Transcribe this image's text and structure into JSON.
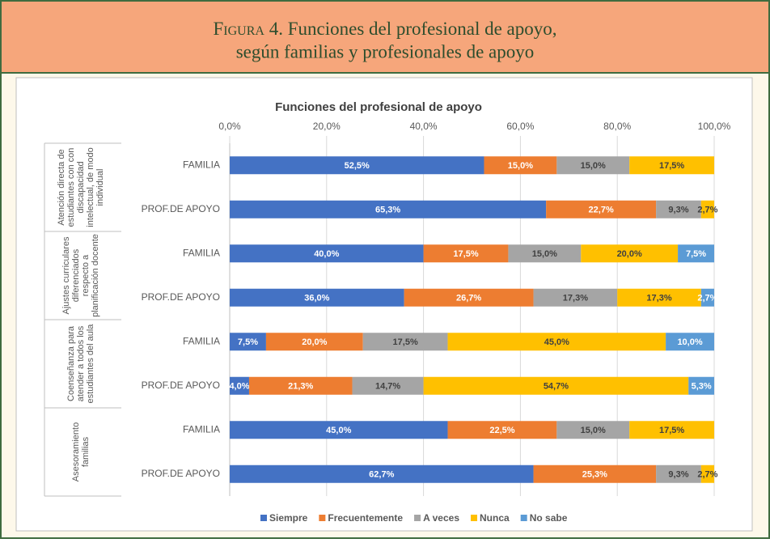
{
  "figure": {
    "caption_label": "Figura 4.",
    "caption_lines": [
      "Funciones del profesional de apoyo,",
      "según familias y profesionales de apoyo"
    ]
  },
  "chart_data": {
    "type": "stacked_barh",
    "title": "Funciones del profesional de apoyo",
    "categories": [
      "FAMILIA",
      "PROF.DE APOYO",
      "FAMILIA",
      "PROF.DE APOYO",
      "FAMILIA",
      "PROF.DE APOYO",
      "FAMILIA",
      "PROF.DE APOYO"
    ],
    "group_labels": [
      [
        "Atención directa de",
        "estudiantes con con",
        "discapacidad",
        "intelectual, de modo",
        "individual"
      ],
      [
        "Ajustes curriculares",
        "diferenciados",
        "respecto a",
        "planificación docente"
      ],
      [
        "Coenseñanza para",
        "atender a todos los",
        "estudiantes del aula"
      ],
      [
        "Asesoramiento",
        "familias"
      ]
    ],
    "xlim": [
      0,
      100
    ],
    "xticks": [
      {
        "value": 0,
        "label": "0,0%"
      },
      {
        "value": 20,
        "label": "20,0%"
      },
      {
        "value": 40,
        "label": "40,0%"
      },
      {
        "value": 60,
        "label": "60,0%"
      },
      {
        "value": 80,
        "label": "80,0%"
      },
      {
        "value": 100,
        "label": "100,0%"
      }
    ],
    "grid": true,
    "legend": "bottom",
    "series": [
      {
        "name": "Siempre",
        "color": "#4472c4",
        "values": [
          52.5,
          65.3,
          40.0,
          36.0,
          7.5,
          4.0,
          45.0,
          62.7
        ],
        "value_labels": [
          "52,5%",
          "65,3%",
          "40,0%",
          "36,0%",
          "7,5%",
          "4,0%",
          "45,0%",
          "62,7%"
        ]
      },
      {
        "name": "Frecuentemente",
        "color": "#ed7d31",
        "values": [
          15.0,
          22.7,
          17.5,
          26.7,
          20.0,
          21.3,
          22.5,
          25.3
        ],
        "value_labels": [
          "15,0%",
          "22,7%",
          "17,5%",
          "26,7%",
          "20,0%",
          "21,3%",
          "22,5%",
          "25,3%"
        ]
      },
      {
        "name": "A veces",
        "color": "#a5a5a5",
        "values": [
          15.0,
          9.3,
          15.0,
          17.3,
          17.5,
          14.7,
          15.0,
          9.3
        ],
        "value_labels": [
          "15,0%",
          "9,3%",
          "15,0%",
          "17,3%",
          "17,5%",
          "14,7%",
          "15,0%",
          "9,3%"
        ]
      },
      {
        "name": "Nunca",
        "color": "#ffc000",
        "values": [
          17.5,
          2.7,
          20.0,
          17.3,
          45.0,
          54.7,
          17.5,
          2.7
        ],
        "value_labels": [
          "17,5%",
          "2,7%",
          "20,0%",
          "17,3%",
          "45,0%",
          "54,7%",
          "17,5%",
          "2,7%"
        ]
      },
      {
        "name": "No sabe",
        "color": "#5b9bd5",
        "values": [
          0,
          0,
          7.5,
          2.7,
          10.0,
          5.3,
          0,
          0
        ],
        "value_labels": [
          null,
          null,
          "7,5%",
          "2,7%",
          "10,0%",
          "5,3%",
          null,
          null
        ]
      }
    ]
  }
}
